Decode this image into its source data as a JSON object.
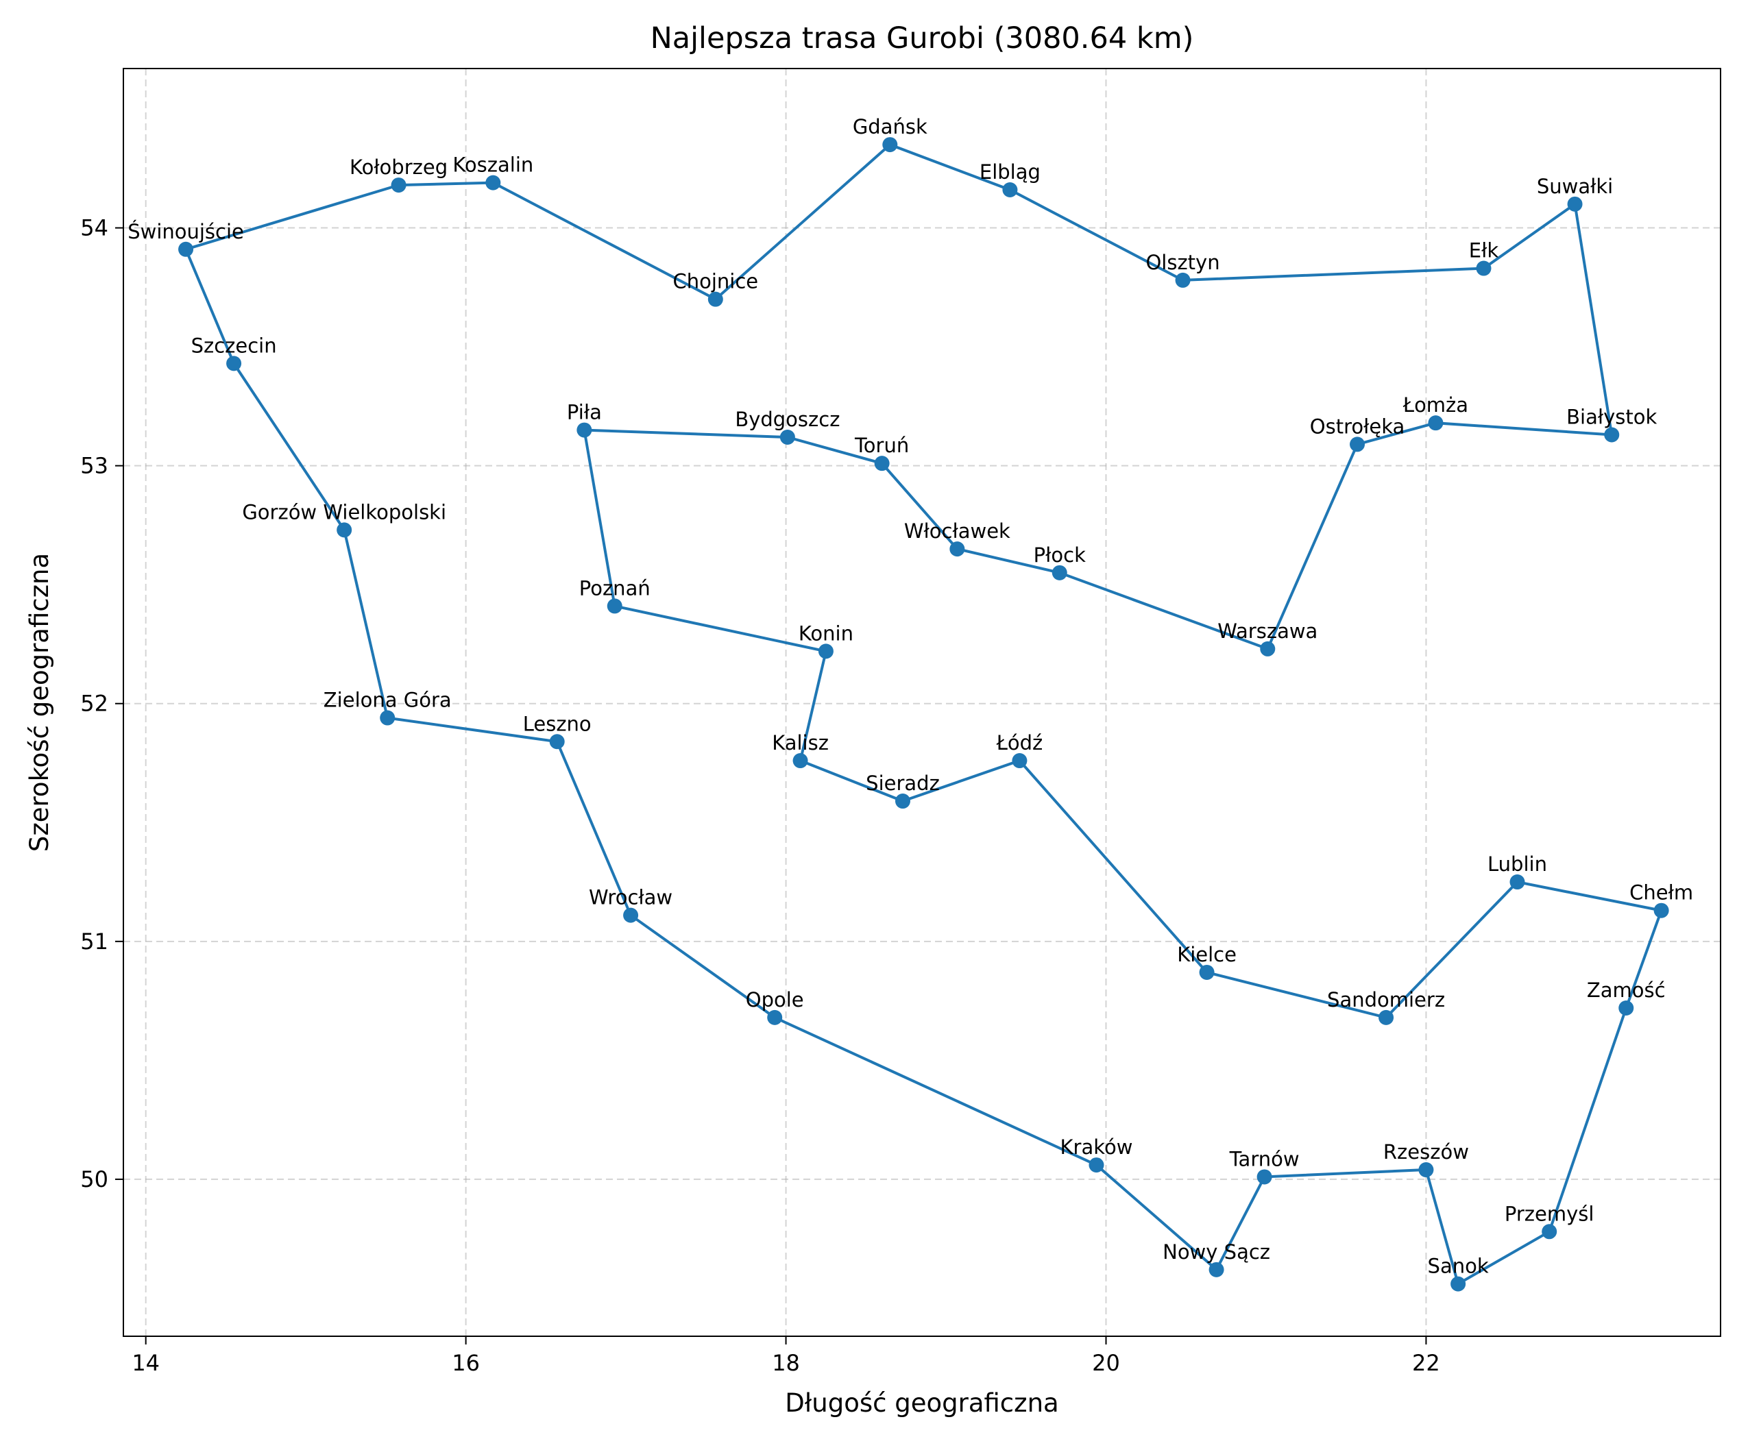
{
  "chart_data": {
    "type": "line",
    "title": "Najlepsza trasa Gurobi (3080.64 km)",
    "xlabel": "Długość geograficzna",
    "ylabel": "Szerokość geograficzna",
    "xlim": [
      13.86,
      23.84
    ],
    "ylim": [
      49.34,
      54.67
    ],
    "xticks": [
      14,
      16,
      18,
      20,
      22
    ],
    "yticks": [
      50,
      51,
      52,
      53,
      54
    ],
    "grid": true,
    "color": "#1f77b4",
    "route": [
      {
        "name": "Świnoujście",
        "x": 14.25,
        "y": 53.91
      },
      {
        "name": "Kołobrzeg",
        "x": 15.58,
        "y": 54.18
      },
      {
        "name": "Koszalin",
        "x": 16.17,
        "y": 54.19
      },
      {
        "name": "Chojnice",
        "x": 17.56,
        "y": 53.7
      },
      {
        "name": "Gdańsk",
        "x": 18.65,
        "y": 54.35
      },
      {
        "name": "Elbląg",
        "x": 19.4,
        "y": 54.16
      },
      {
        "name": "Olsztyn",
        "x": 20.48,
        "y": 53.78
      },
      {
        "name": "Ełk",
        "x": 22.36,
        "y": 53.83
      },
      {
        "name": "Suwałki",
        "x": 22.93,
        "y": 54.1
      },
      {
        "name": "Białystok",
        "x": 23.16,
        "y": 53.13
      },
      {
        "name": "Łomża",
        "x": 22.06,
        "y": 53.18
      },
      {
        "name": "Ostrołęka",
        "x": 21.57,
        "y": 53.09
      },
      {
        "name": "Warszawa",
        "x": 21.01,
        "y": 52.23
      },
      {
        "name": "Płock",
        "x": 19.71,
        "y": 52.55
      },
      {
        "name": "Włocławek",
        "x": 19.07,
        "y": 52.65
      },
      {
        "name": "Toruń",
        "x": 18.6,
        "y": 53.01
      },
      {
        "name": "Bydgoszcz",
        "x": 18.01,
        "y": 53.12
      },
      {
        "name": "Piła",
        "x": 16.74,
        "y": 53.15
      },
      {
        "name": "Poznań",
        "x": 16.93,
        "y": 52.41
      },
      {
        "name": "Konin",
        "x": 18.25,
        "y": 52.22
      },
      {
        "name": "Kalisz",
        "x": 18.09,
        "y": 51.76
      },
      {
        "name": "Sieradz",
        "x": 18.73,
        "y": 51.59
      },
      {
        "name": "Łódź",
        "x": 19.46,
        "y": 51.76
      },
      {
        "name": "Kielce",
        "x": 20.63,
        "y": 50.87
      },
      {
        "name": "Sandomierz",
        "x": 21.75,
        "y": 50.68
      },
      {
        "name": "Lublin",
        "x": 22.57,
        "y": 51.25
      },
      {
        "name": "Chełm",
        "x": 23.47,
        "y": 51.13
      },
      {
        "name": "Zamość",
        "x": 23.25,
        "y": 50.72
      },
      {
        "name": "Przemyśl",
        "x": 22.77,
        "y": 49.78
      },
      {
        "name": "Sanok",
        "x": 22.2,
        "y": 49.56
      },
      {
        "name": "Rzeszów",
        "x": 22.0,
        "y": 50.04
      },
      {
        "name": "Tarnów",
        "x": 20.99,
        "y": 50.01
      },
      {
        "name": "Nowy Sącz",
        "x": 20.69,
        "y": 49.62
      },
      {
        "name": "Kraków",
        "x": 19.94,
        "y": 50.06
      },
      {
        "name": "Opole",
        "x": 17.93,
        "y": 50.68
      },
      {
        "name": "Wrocław",
        "x": 17.03,
        "y": 51.11
      },
      {
        "name": "Leszno",
        "x": 16.57,
        "y": 51.84
      },
      {
        "name": "Zielona Góra",
        "x": 15.51,
        "y": 51.94
      },
      {
        "name": "Gorzów Wielkopolski",
        "x": 15.24,
        "y": 52.73
      },
      {
        "name": "Szczecin",
        "x": 14.55,
        "y": 53.43
      },
      {
        "name": "Świnoujście",
        "x": 14.25,
        "y": 53.91
      }
    ]
  }
}
